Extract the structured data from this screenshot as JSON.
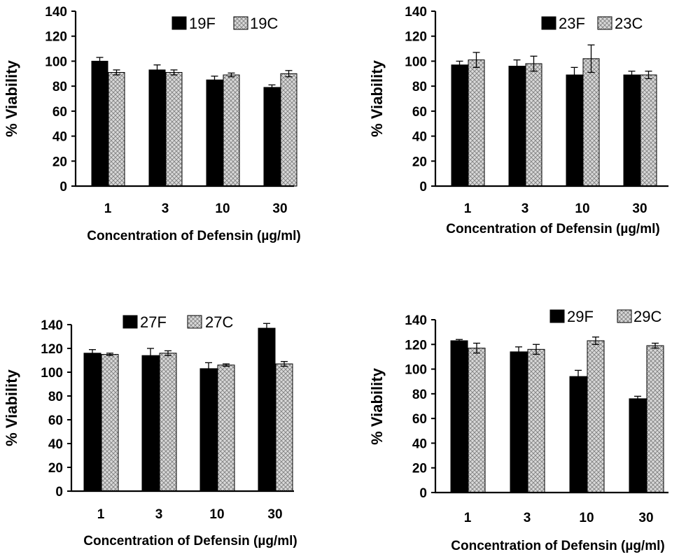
{
  "figure": {
    "colors": {
      "fixed": "#000000",
      "control_fill": "#d9d9d9",
      "control_hatch": "#808080"
    },
    "chart_data": [
      {
        "type": "bar",
        "categories": [
          "1",
          "3",
          "10",
          "30"
        ],
        "series": [
          {
            "name": "19F",
            "values": [
              100,
              93,
              85,
              79
            ],
            "errors": [
              3,
              4,
              3,
              2
            ]
          },
          {
            "name": "19C",
            "values": [
              91,
              91,
              89,
              90
            ],
            "errors": [
              2,
              2,
              1.5,
              2.5
            ]
          }
        ],
        "ylim": [
          0,
          140
        ],
        "yticks": [
          0,
          20,
          40,
          60,
          80,
          100,
          120,
          140
        ],
        "ylabel": "% Viability",
        "xlabel": "Concentration of Defensin (µg/ml)",
        "legend": "top-right"
      },
      {
        "type": "bar",
        "categories": [
          "1",
          "3",
          "10",
          "30"
        ],
        "series": [
          {
            "name": "23F",
            "values": [
              97,
              96,
              89,
              89
            ],
            "errors": [
              3,
              5,
              6,
              3
            ]
          },
          {
            "name": "23C",
            "values": [
              101,
              98,
              102,
              89
            ],
            "errors": [
              6,
              6,
              11,
              3
            ]
          }
        ],
        "ylim": [
          0,
          140
        ],
        "yticks": [
          0,
          20,
          40,
          60,
          80,
          100,
          120,
          140
        ],
        "ylabel": "% Viability",
        "xlabel": "Concentration of Defensin (µg/ml)",
        "legend": "top-right"
      },
      {
        "type": "bar",
        "categories": [
          "1",
          "3",
          "10",
          "30"
        ],
        "series": [
          {
            "name": "27F",
            "values": [
              116,
              114,
              103,
              137
            ],
            "errors": [
              3,
              6,
              5,
              4
            ]
          },
          {
            "name": "27C",
            "values": [
              115,
              116,
              106,
              107
            ],
            "errors": [
              1,
              2,
              1,
              2
            ]
          }
        ],
        "ylim": [
          0,
          140
        ],
        "yticks": [
          0,
          20,
          40,
          60,
          80,
          100,
          120,
          140
        ],
        "ylabel": "% Viability",
        "xlabel": "Concentration of Defensin (µg/ml)",
        "legend": "top-center"
      },
      {
        "type": "bar",
        "categories": [
          "1",
          "3",
          "10",
          "30"
        ],
        "series": [
          {
            "name": "29F",
            "values": [
              123,
              114,
              94,
              76
            ],
            "errors": [
              1,
              4,
              5,
              2
            ]
          },
          {
            "name": "29C",
            "values": [
              117,
              116,
              123,
              119
            ],
            "errors": [
              4,
              4,
              3,
              2
            ]
          }
        ],
        "ylim": [
          0,
          140
        ],
        "yticks": [
          0,
          20,
          40,
          60,
          80,
          100,
          120,
          140
        ],
        "ylabel": "% Viability",
        "xlabel": "Concentration of Defensin (µg/ml)",
        "legend": "top-right"
      }
    ]
  }
}
